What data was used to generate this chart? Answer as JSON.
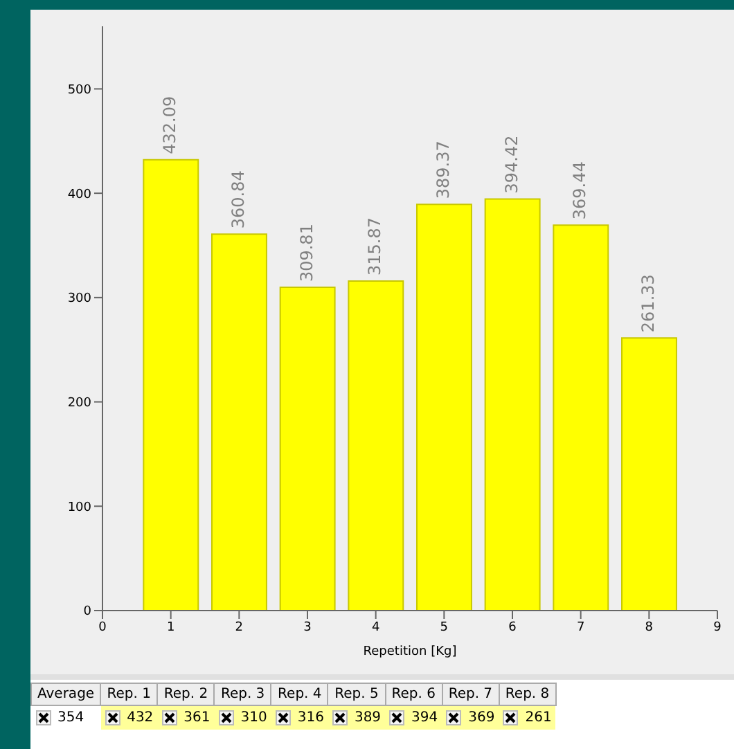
{
  "chart_data": {
    "type": "bar",
    "xlabel": "Repetition [Kg]",
    "x": [
      1,
      2,
      3,
      4,
      5,
      6,
      7,
      8
    ],
    "values": [
      432.09,
      360.84,
      309.81,
      315.87,
      389.37,
      394.42,
      369.44,
      261.33
    ],
    "color": "#ffff00",
    "xlim": [
      0,
      9
    ],
    "xticks": [
      0,
      1,
      2,
      3,
      4,
      5,
      6,
      7,
      8,
      9
    ],
    "ylim": [
      0,
      560
    ],
    "yticks": [
      0,
      100,
      200,
      300,
      400,
      500
    ],
    "grid": false,
    "legend": false,
    "data_labels": true,
    "annotations": [
      "Average",
      "Rep. 1",
      "Rep. 2",
      "Rep. 3",
      "Rep. 4",
      "Rep. 5",
      "Rep. 6",
      "Rep. 7",
      "Rep. 8",
      "354",
      "432",
      "361",
      "310",
      "316",
      "389",
      "394",
      "369",
      "261"
    ]
  }
}
